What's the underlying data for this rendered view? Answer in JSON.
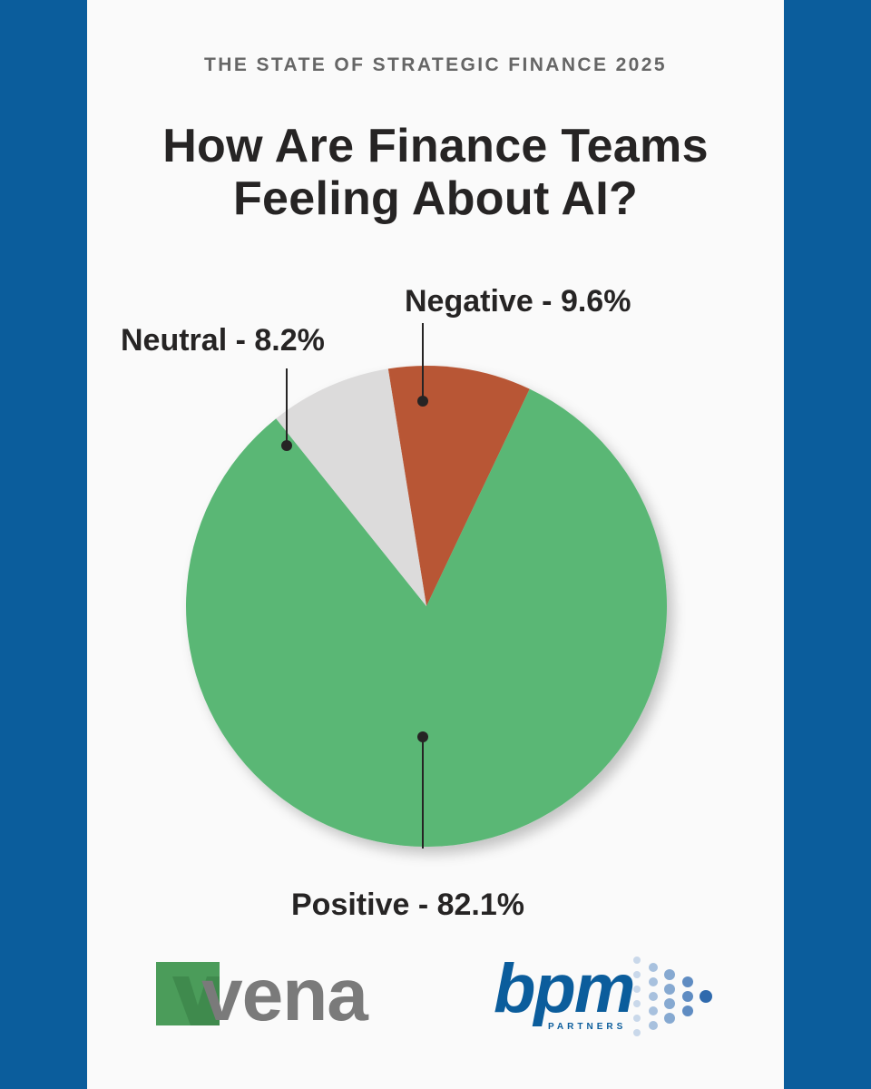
{
  "header": {
    "supertitle": "THE STATE OF STRATEGIC FINANCE 2025",
    "title_line1": "How Are Finance Teams",
    "title_line2": "Feeling About AI?"
  },
  "chart_data": {
    "type": "pie",
    "title": "How Are Finance Teams Feeling About AI?",
    "slices": [
      {
        "name": "Negative",
        "value": 9.6,
        "label": "Negative -  9.6%",
        "color": "#b85636"
      },
      {
        "name": "Positive",
        "value": 82.1,
        "label": "Positive - 82.1%",
        "color": "#5ab775"
      },
      {
        "name": "Neutral",
        "value": 8.2,
        "label": "Neutral - 8.2%",
        "color": "#dcdbdb"
      }
    ],
    "start": "top, clockwise from Negative"
  },
  "logos": {
    "vena": {
      "text": "vena",
      "colors": [
        "#4b9c5a",
        "#7a7a7a"
      ]
    },
    "bpm": {
      "text": "bpm",
      "sub": "PARTNERS",
      "color": "#0b5d9c"
    }
  },
  "colors": {
    "background": "#0b5d9c",
    "panel": "#fafafa"
  }
}
